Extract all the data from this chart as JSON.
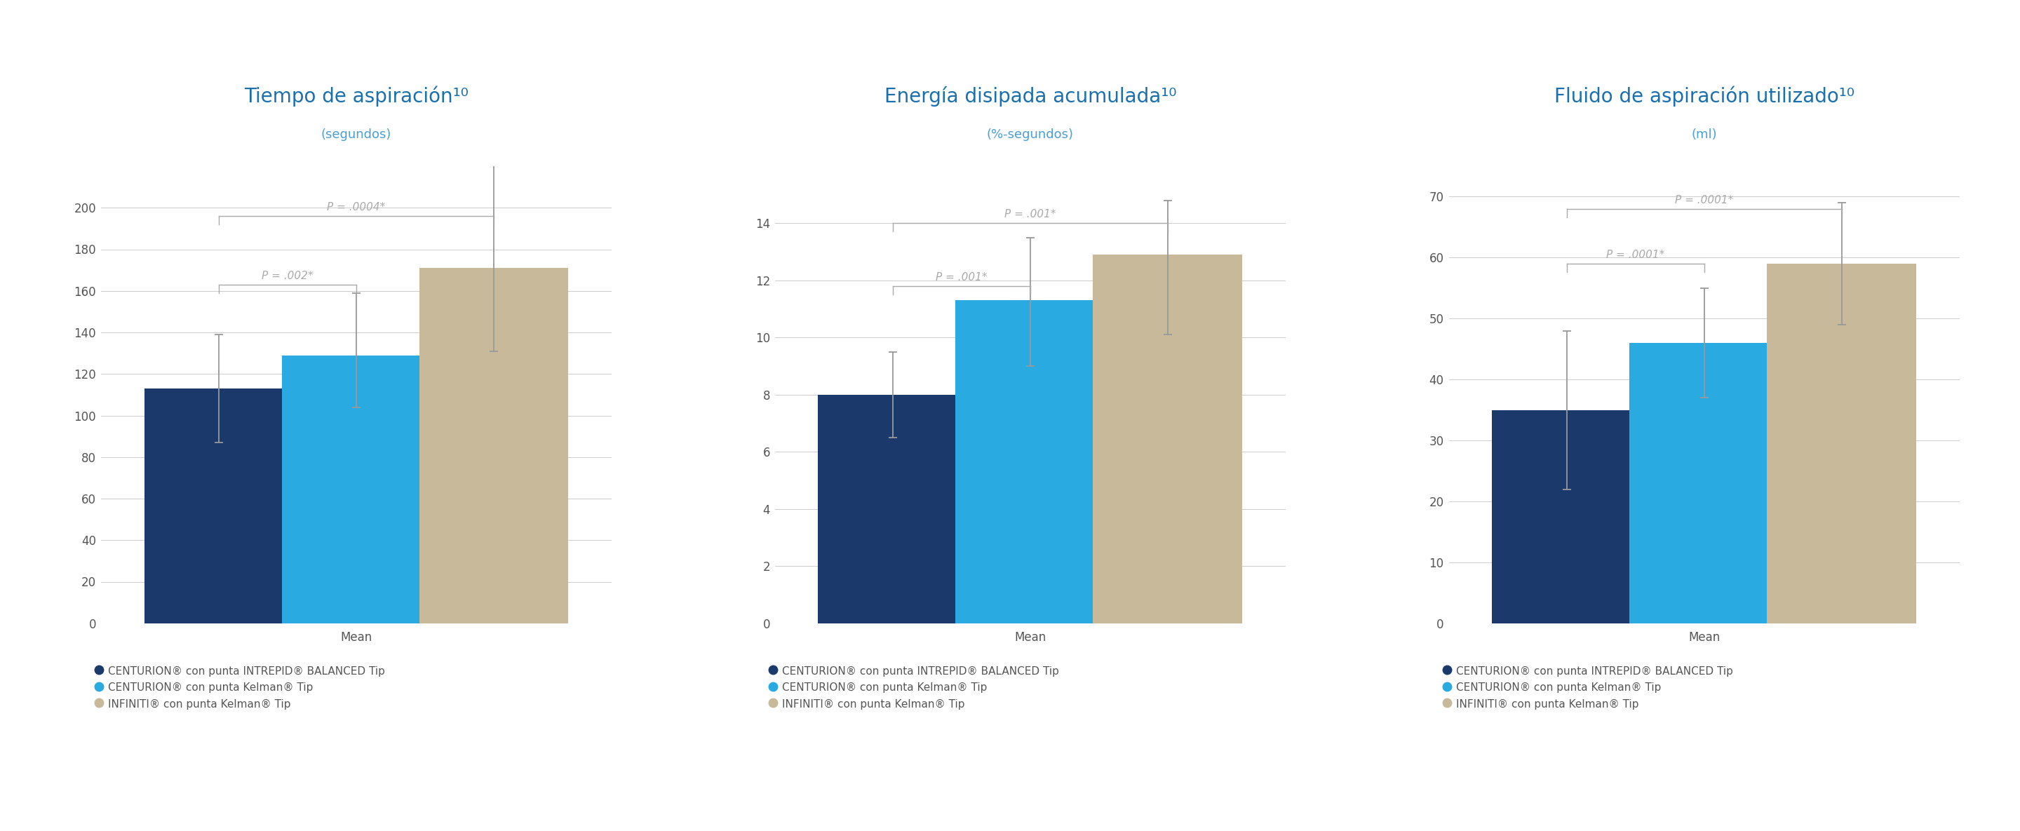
{
  "charts": [
    {
      "title": "Tiempo de aspiración¹⁰",
      "subtitle": "(segundos)",
      "values": [
        113,
        129,
        171
      ],
      "errors_up": [
        26,
        30,
        55
      ],
      "errors_down": [
        26,
        25,
        40
      ],
      "ylim": [
        0,
        220
      ],
      "yticks": [
        0,
        20,
        40,
        60,
        80,
        100,
        120,
        140,
        160,
        180,
        200
      ],
      "xlabel": "Mean",
      "pval1": {
        "text": "P = .002*",
        "y": 163,
        "x1i": 0,
        "x2i": 1
      },
      "pval2": {
        "text": "P = .0004*",
        "y": 196,
        "x1i": 0,
        "x2i": 2
      }
    },
    {
      "title": "Energía disipada acumulada¹⁰",
      "subtitle": "(%-segundos)",
      "values": [
        8.0,
        11.3,
        12.9
      ],
      "errors_up": [
        1.5,
        2.2,
        1.9
      ],
      "errors_down": [
        1.5,
        2.3,
        2.8
      ],
      "ylim": [
        0,
        16
      ],
      "yticks": [
        0,
        2,
        4,
        6,
        8,
        10,
        12,
        14
      ],
      "xlabel": "Mean",
      "pval1": {
        "text": "P = .001*",
        "y": 11.8,
        "x1i": 0,
        "x2i": 1
      },
      "pval2": {
        "text": "P = .001*",
        "y": 14.0,
        "x1i": 0,
        "x2i": 2
      }
    },
    {
      "title": "Fluido de aspiración utilizado¹⁰",
      "subtitle": "(ml)",
      "values": [
        35,
        46,
        59
      ],
      "errors_up": [
        13,
        9,
        10
      ],
      "errors_down": [
        13,
        9,
        10
      ],
      "ylim": [
        0,
        75
      ],
      "yticks": [
        0,
        10,
        20,
        30,
        40,
        50,
        60,
        70
      ],
      "xlabel": "Mean",
      "pval1": {
        "text": "P = .0001*",
        "y": 59,
        "x1i": 0,
        "x2i": 1
      },
      "pval2": {
        "text": "P = .0001*",
        "y": 68,
        "x1i": 0,
        "x2i": 2
      }
    }
  ],
  "colors": [
    "#1b3a6b",
    "#29abe2",
    "#c8b99a"
  ],
  "bar_width": 0.38,
  "error_color": "#999999",
  "sig_line_color": "#aaaaaa",
  "sig_text_color": "#aaaaaa",
  "title_color": "#1a6faf",
  "subtitle_color": "#4a9fd4",
  "axis_color": "#cccccc",
  "tick_color": "#555555",
  "background_color": "#ffffff",
  "legend_labels": [
    "CENTURION® con punta INTREPID® BALANCED Tip",
    "CENTURION® con punta Kelman® Tip",
    "INFINITI® con punta Kelman® Tip"
  ],
  "title_fontsize": 20,
  "subtitle_fontsize": 13,
  "tick_fontsize": 12,
  "xlabel_fontsize": 12,
  "legend_fontsize": 11,
  "pval_fontsize": 11
}
